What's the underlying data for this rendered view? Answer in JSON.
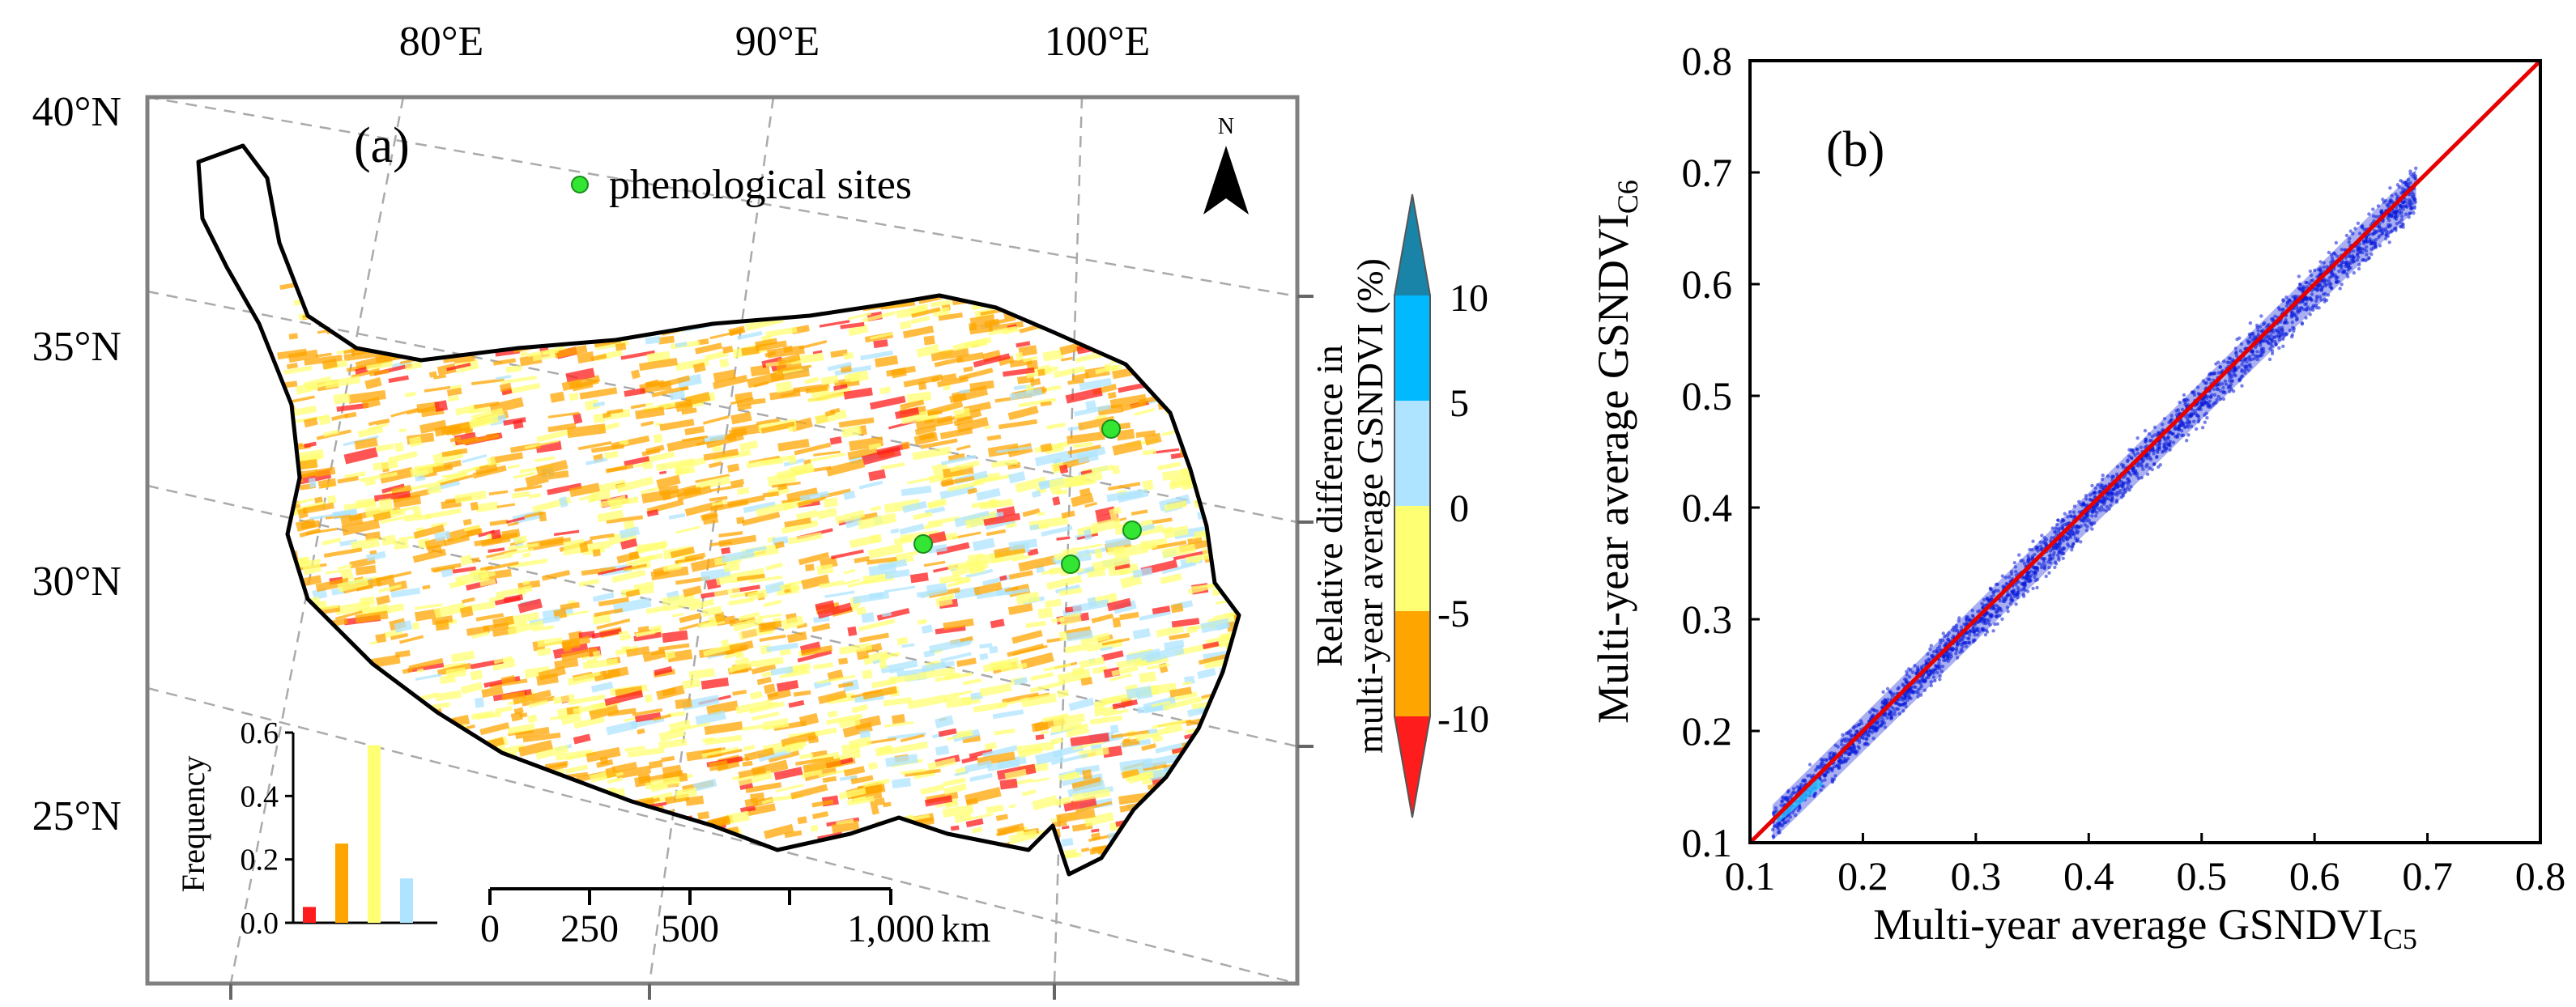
{
  "colors": {
    "class_neg10_to_neg5": "#ff1c1c",
    "class_neg5_to_0": "#ffa500",
    "class_0_to_5": "#ffff73",
    "class_5_to_10": "#aee4ff",
    "class_gt10": "#00b9ff",
    "class_high_tip": "#1984a8",
    "site_marker": "#33e633",
    "scatter_points": "#0a1ad8",
    "one_to_one_line": "#e60000"
  },
  "icons": {
    "north_arrow": "north-arrow-icon",
    "site_marker": "green-dot-icon"
  },
  "chart_data": [
    {
      "type": "map",
      "panel_label": "(a)",
      "legend_site_label": "phenological sites",
      "north_label": "N",
      "lon_labels": [
        "80°E",
        "90°E",
        "100°E"
      ],
      "lat_labels": [
        "40°N",
        "35°N",
        "30°N",
        "25°N"
      ],
      "colorbar": {
        "title_line1": "Relative difference in",
        "title_line2": "multi-year average GSNDVI (%)",
        "tick_labels": [
          "10",
          "5",
          "0",
          "-5",
          "-10"
        ],
        "classes": [
          {
            "range": "> 10",
            "color_key": "class_gt10"
          },
          {
            "range": "5 to 10",
            "color_key": "class_gt10"
          },
          {
            "range": "0 to 5",
            "color_key": "class_5_to_10"
          },
          {
            "range": "-5 to 0",
            "color_key": "class_0_to_5"
          },
          {
            "range": "-10 to -5",
            "color_key": "class_neg5_to_0"
          },
          {
            "range": "< -10",
            "color_key": "class_neg10_to_neg5"
          }
        ]
      },
      "scalebar": {
        "tick_labels": [
          "0",
          "250",
          "500",
          "1,000"
        ],
        "unit": "km"
      },
      "inset_histogram": {
        "type": "bar",
        "ylabel": "Frequency",
        "ylim": [
          0,
          0.6
        ],
        "y_ticks": [
          "0.6",
          "0.4",
          "0.2",
          "0.0"
        ],
        "bars": [
          {
            "class": "-10 to -5",
            "value": 0.05,
            "color_key": "class_neg10_to_neg5"
          },
          {
            "class": "-5 to 0",
            "value": 0.25,
            "color_key": "class_neg5_to_0"
          },
          {
            "class": "0 to 5",
            "value": 0.56,
            "color_key": "class_0_to_5"
          },
          {
            "class": "5 to 10",
            "value": 0.14,
            "color_key": "class_5_to_10"
          }
        ]
      }
    },
    {
      "type": "scatter",
      "panel_label": "(b)",
      "xlabel_main": "Multi-year average GSNDVI",
      "xlabel_sub": "C5",
      "ylabel_main": "Multi-year average GSNDVI",
      "ylabel_sub": "C6",
      "xlim": [
        0.1,
        0.8
      ],
      "ylim": [
        0.1,
        0.8
      ],
      "x_ticks": [
        0.1,
        0.2,
        0.3,
        0.4,
        0.5,
        0.6,
        0.7,
        0.8
      ],
      "y_ticks": [
        0.1,
        0.2,
        0.3,
        0.4,
        0.5,
        0.6,
        0.7,
        0.8
      ],
      "x_tick_labels": [
        "0.1",
        "0.2",
        "0.3",
        "0.4",
        "0.5",
        "0.6",
        "0.7",
        "0.8"
      ],
      "y_tick_labels": [
        "0.1",
        "0.2",
        "0.3",
        "0.4",
        "0.5",
        "0.6",
        "0.7",
        "0.8"
      ],
      "one_to_one_line": {
        "x": [
          0.1,
          0.8
        ],
        "y": [
          0.1,
          0.8
        ]
      },
      "point_cloud": {
        "x_range": [
          0.12,
          0.69
        ],
        "center_y": [
          0.118,
          0.685
        ],
        "half_width": [
          0.005,
          0.008
        ]
      }
    }
  ]
}
